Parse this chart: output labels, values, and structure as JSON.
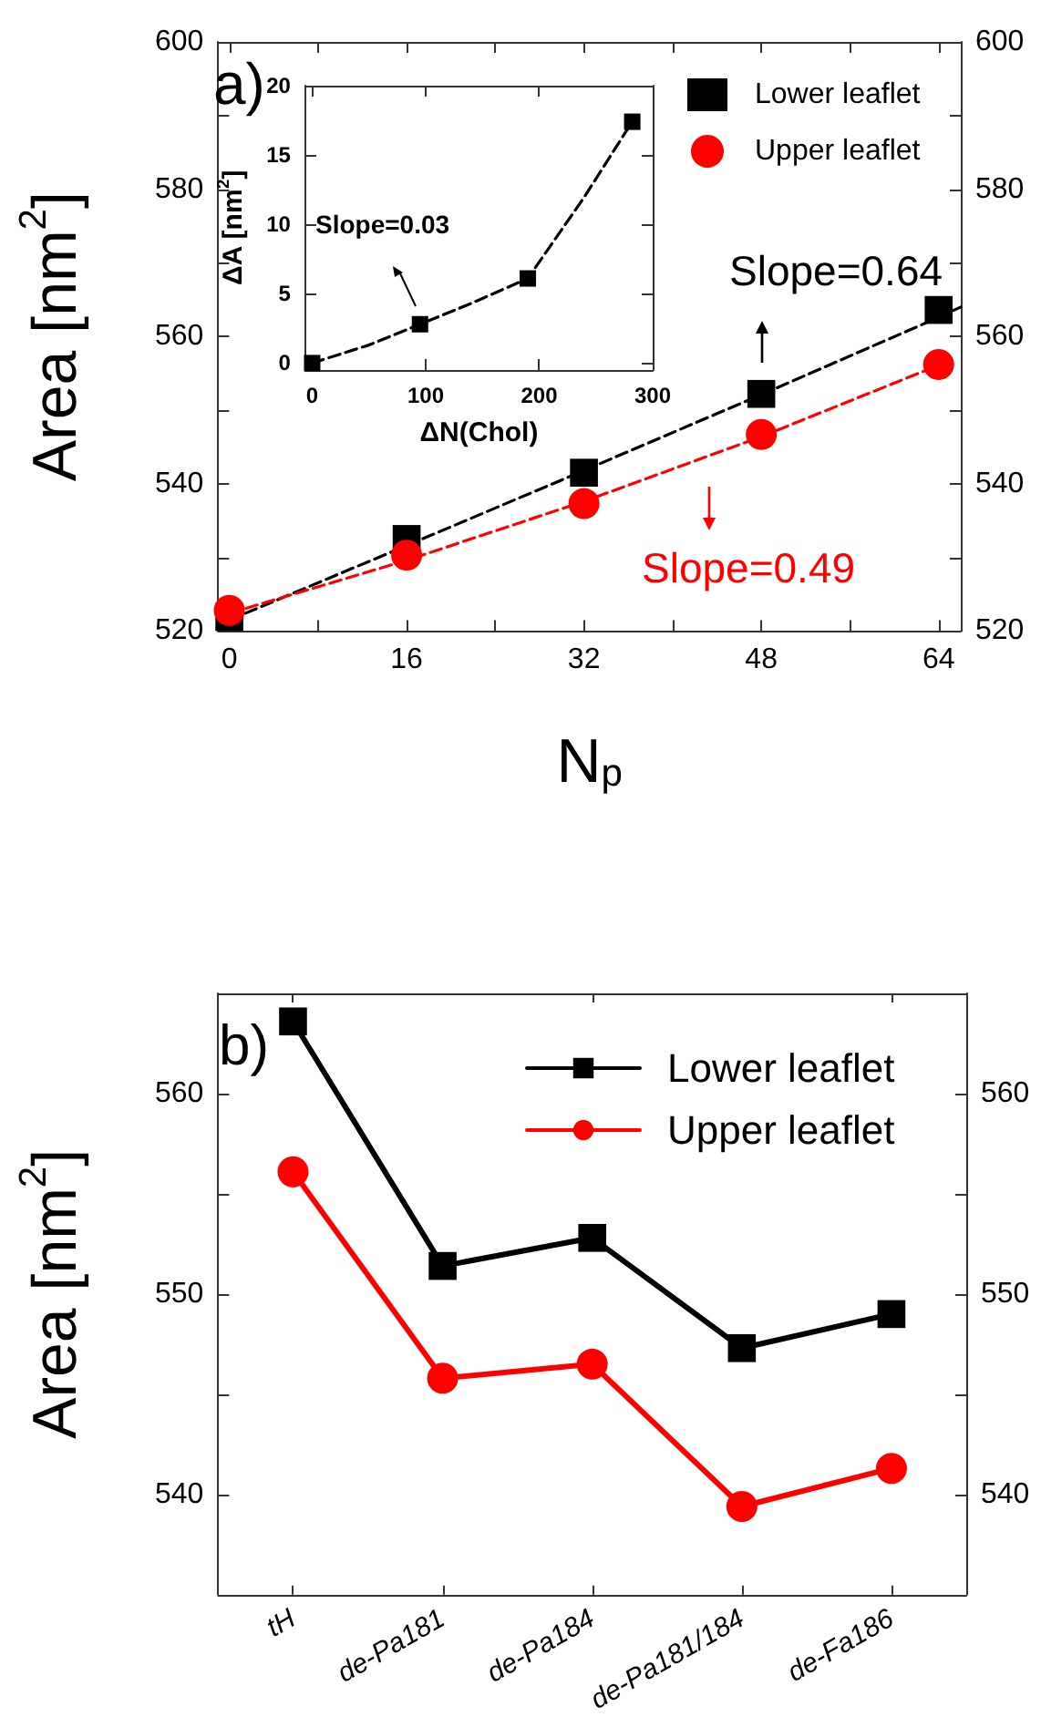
{
  "chart_data": [
    {
      "type": "scatter",
      "ylabel": "Area [nm$^{2}$]",
      "xlabel": "N$_{p}$",
      "annotations": [
        "a)",
        "Slope=0.64",
        "Slope=0.49"
      ],
      "x": [
        0,
        16,
        32,
        48,
        64
      ],
      "xlim": [
        -1,
        66
      ],
      "xticks": [
        0,
        {
          "value": 8,
          "label": null
        },
        16,
        {
          "value": 24,
          "label": null
        },
        32,
        {
          "value": 40,
          "label": null
        },
        48,
        {
          "value": 56,
          "label": null
        },
        64
      ],
      "ylim": [
        520,
        600
      ],
      "yticks": [
        520,
        {
          "value": 530,
          "label": null
        },
        540,
        {
          "value": 550,
          "label": null
        },
        560,
        {
          "value": 570,
          "label": null
        },
        580,
        {
          "value": 590,
          "label": null
        },
        600
      ],
      "y2lim": [
        520,
        600
      ],
      "y2ticks": [
        520,
        {
          "value": 530,
          "label": null
        },
        540,
        {
          "value": 550,
          "label": null
        },
        560,
        {
          "value": 570,
          "label": null
        },
        580,
        {
          "value": 590,
          "label": null
        },
        600
      ],
      "legend": "top right",
      "series": [
        {
          "name": "Lower leaflet",
          "color": "#000000",
          "marker": "square",
          "values": [
            521.9,
            532.5,
            541.5,
            552.2,
            563.6
          ]
        },
        {
          "name": "Upper leaflet",
          "color": "#ff0000",
          "marker": "circle",
          "values": [
            522.8,
            530.3,
            537.3,
            546.7,
            556.2
          ]
        },
        {
          "type": "line",
          "color": "#000000",
          "line_style": "dashed",
          "marker": "none",
          "x": [
            0,
            16,
            32,
            48,
            64,
            66
          ],
          "values": [
            521.5,
            531.6,
            541.8,
            552.1,
            562.6,
            564
          ]
        },
        {
          "type": "line",
          "color": "#ff0000",
          "line_style": "dashed",
          "marker": "none",
          "x": [
            0,
            16,
            32,
            48,
            64
          ],
          "values": [
            522.4,
            529.6,
            537.6,
            546.4,
            556.1
          ]
        }
      ]
    },
    {
      "type": "scatter",
      "xlabel": "ΔN(Chol)",
      "ylabel": "ΔA [nm$^{2}$]",
      "annotations": [
        "Slope=0.03"
      ],
      "xlim": [
        -6,
        300
      ],
      "xticks": [
        0,
        100,
        200,
        300
      ],
      "ylim": [
        -0.5,
        20
      ],
      "yticks": [
        0,
        5,
        10,
        15,
        20
      ],
      "series": [
        {
          "color": "#000000",
          "marker": "square",
          "x": [
            0,
            95,
            190,
            282
          ],
          "values": [
            0,
            2.8,
            6.1,
            17.4
          ]
        },
        {
          "type": "line",
          "color": "#000000",
          "line_style": "dashed",
          "marker": "none",
          "x": [
            0,
            50,
            95,
            140,
            190,
            240,
            282
          ],
          "values": [
            0,
            1.3,
            2.8,
            4.3,
            6.1,
            12,
            17.4
          ]
        }
      ]
    },
    {
      "type": "line",
      "ylabel": "Area [nm$^{2}$]",
      "annotations": [
        "b)"
      ],
      "categories": [
        "tH",
        "de-Pa181",
        "de-Pa184",
        "de-Pa181/184",
        "de-Fa186"
      ],
      "ylim": [
        535,
        565
      ],
      "yticks": [
        {
          "value": 535,
          "label": null
        },
        540,
        {
          "value": 545,
          "label": null
        },
        550,
        {
          "value": 555,
          "label": null
        },
        560,
        {
          "value": 565,
          "label": null
        }
      ],
      "y2lim": [
        535,
        565
      ],
      "y2ticks": [
        {
          "value": 535,
          "label": null
        },
        540,
        {
          "value": 545,
          "label": null
        },
        550,
        {
          "value": 555,
          "label": null
        },
        560,
        {
          "value": 565,
          "label": null
        }
      ],
      "legend": "top right",
      "series": [
        {
          "name": "Lower leaflet",
          "color": "#000000",
          "marker": "square",
          "values": [
            563.6,
            551.4,
            552.8,
            547.3,
            549.0
          ]
        },
        {
          "name": "Upper leaflet",
          "color": "#ff0000",
          "marker": "circle",
          "values": [
            556.1,
            545.8,
            546.5,
            539.4,
            541.3
          ]
        }
      ]
    }
  ]
}
